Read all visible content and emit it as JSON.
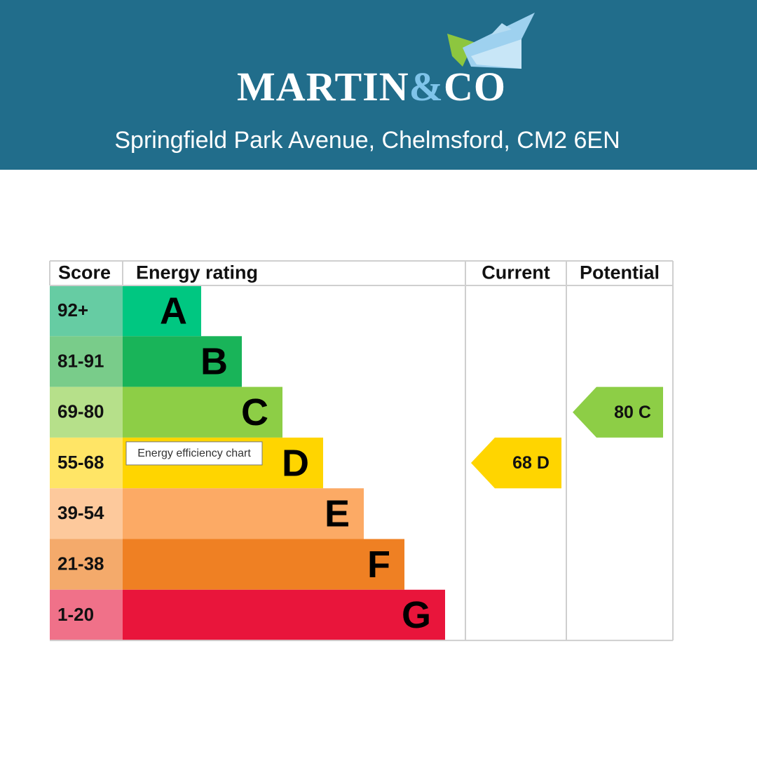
{
  "header": {
    "brand": {
      "name": "MARTIN",
      "amp": "&",
      "suffix": "CO"
    },
    "address": "Springfield Park Avenue, Chelmsford, CM2 6EN"
  },
  "epc": {
    "columns": [
      "Score",
      "Energy rating",
      "Current",
      "Potential"
    ],
    "bands": [
      {
        "score": "92+",
        "letter": "A",
        "color": "#00c781",
        "score_color": "#66cca3"
      },
      {
        "score": "81-91",
        "letter": "B",
        "color": "#19b459",
        "score_color": "#79cc8a"
      },
      {
        "score": "69-80",
        "letter": "C",
        "color": "#8dce46",
        "score_color": "#b6e08a"
      },
      {
        "score": "55-68",
        "letter": "D",
        "color": "#ffd500",
        "score_color": "#ffe566"
      },
      {
        "score": "39-54",
        "letter": "E",
        "color": "#fcaa65",
        "score_color": "#fdc99c"
      },
      {
        "score": "21-38",
        "letter": "F",
        "color": "#ef8023",
        "score_color": "#f4aa6b"
      },
      {
        "score": "1-20",
        "letter": "G",
        "color": "#e9153b",
        "score_color": "#f07189"
      }
    ],
    "current": {
      "value": 68,
      "letter": "D"
    },
    "potential": {
      "value": 80,
      "letter": "C"
    },
    "tooltip": "Energy efficiency chart"
  }
}
